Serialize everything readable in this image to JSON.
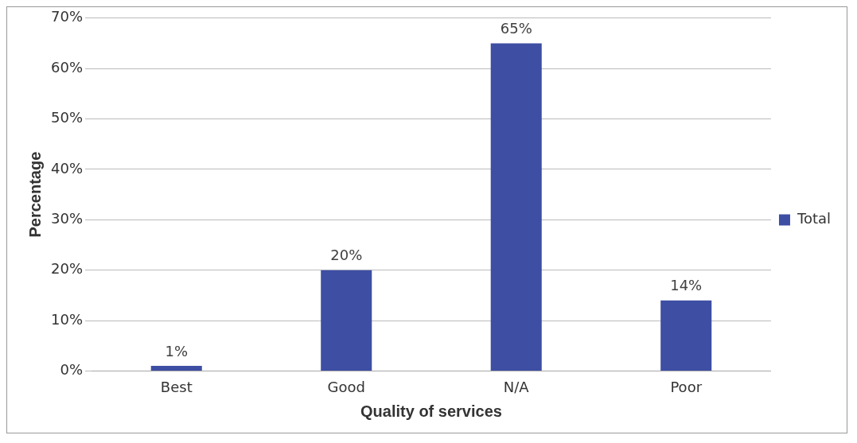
{
  "chart_data": {
    "type": "bar",
    "xlabel": "Quality of services",
    "ylabel": "Percentage",
    "categories": [
      "Best",
      "Good",
      "N/A",
      "Poor"
    ],
    "series": [
      {
        "name": "Total",
        "color": "#3d4ea3",
        "values": [
          1,
          20,
          65,
          14
        ],
        "value_labels": [
          "1%",
          "20%",
          "65%",
          "14%"
        ]
      }
    ],
    "ylim": [
      0,
      70
    ],
    "yticks": [
      {
        "value": 0,
        "label": "0%"
      },
      {
        "value": 10,
        "label": "10%"
      },
      {
        "value": 20,
        "label": "20%"
      },
      {
        "value": 30,
        "label": "30%"
      },
      {
        "value": 40,
        "label": "40%"
      },
      {
        "value": 50,
        "label": "50%"
      },
      {
        "value": 60,
        "label": "60%"
      },
      {
        "value": 70,
        "label": "70%"
      }
    ],
    "grid": "y",
    "legend": "right"
  }
}
